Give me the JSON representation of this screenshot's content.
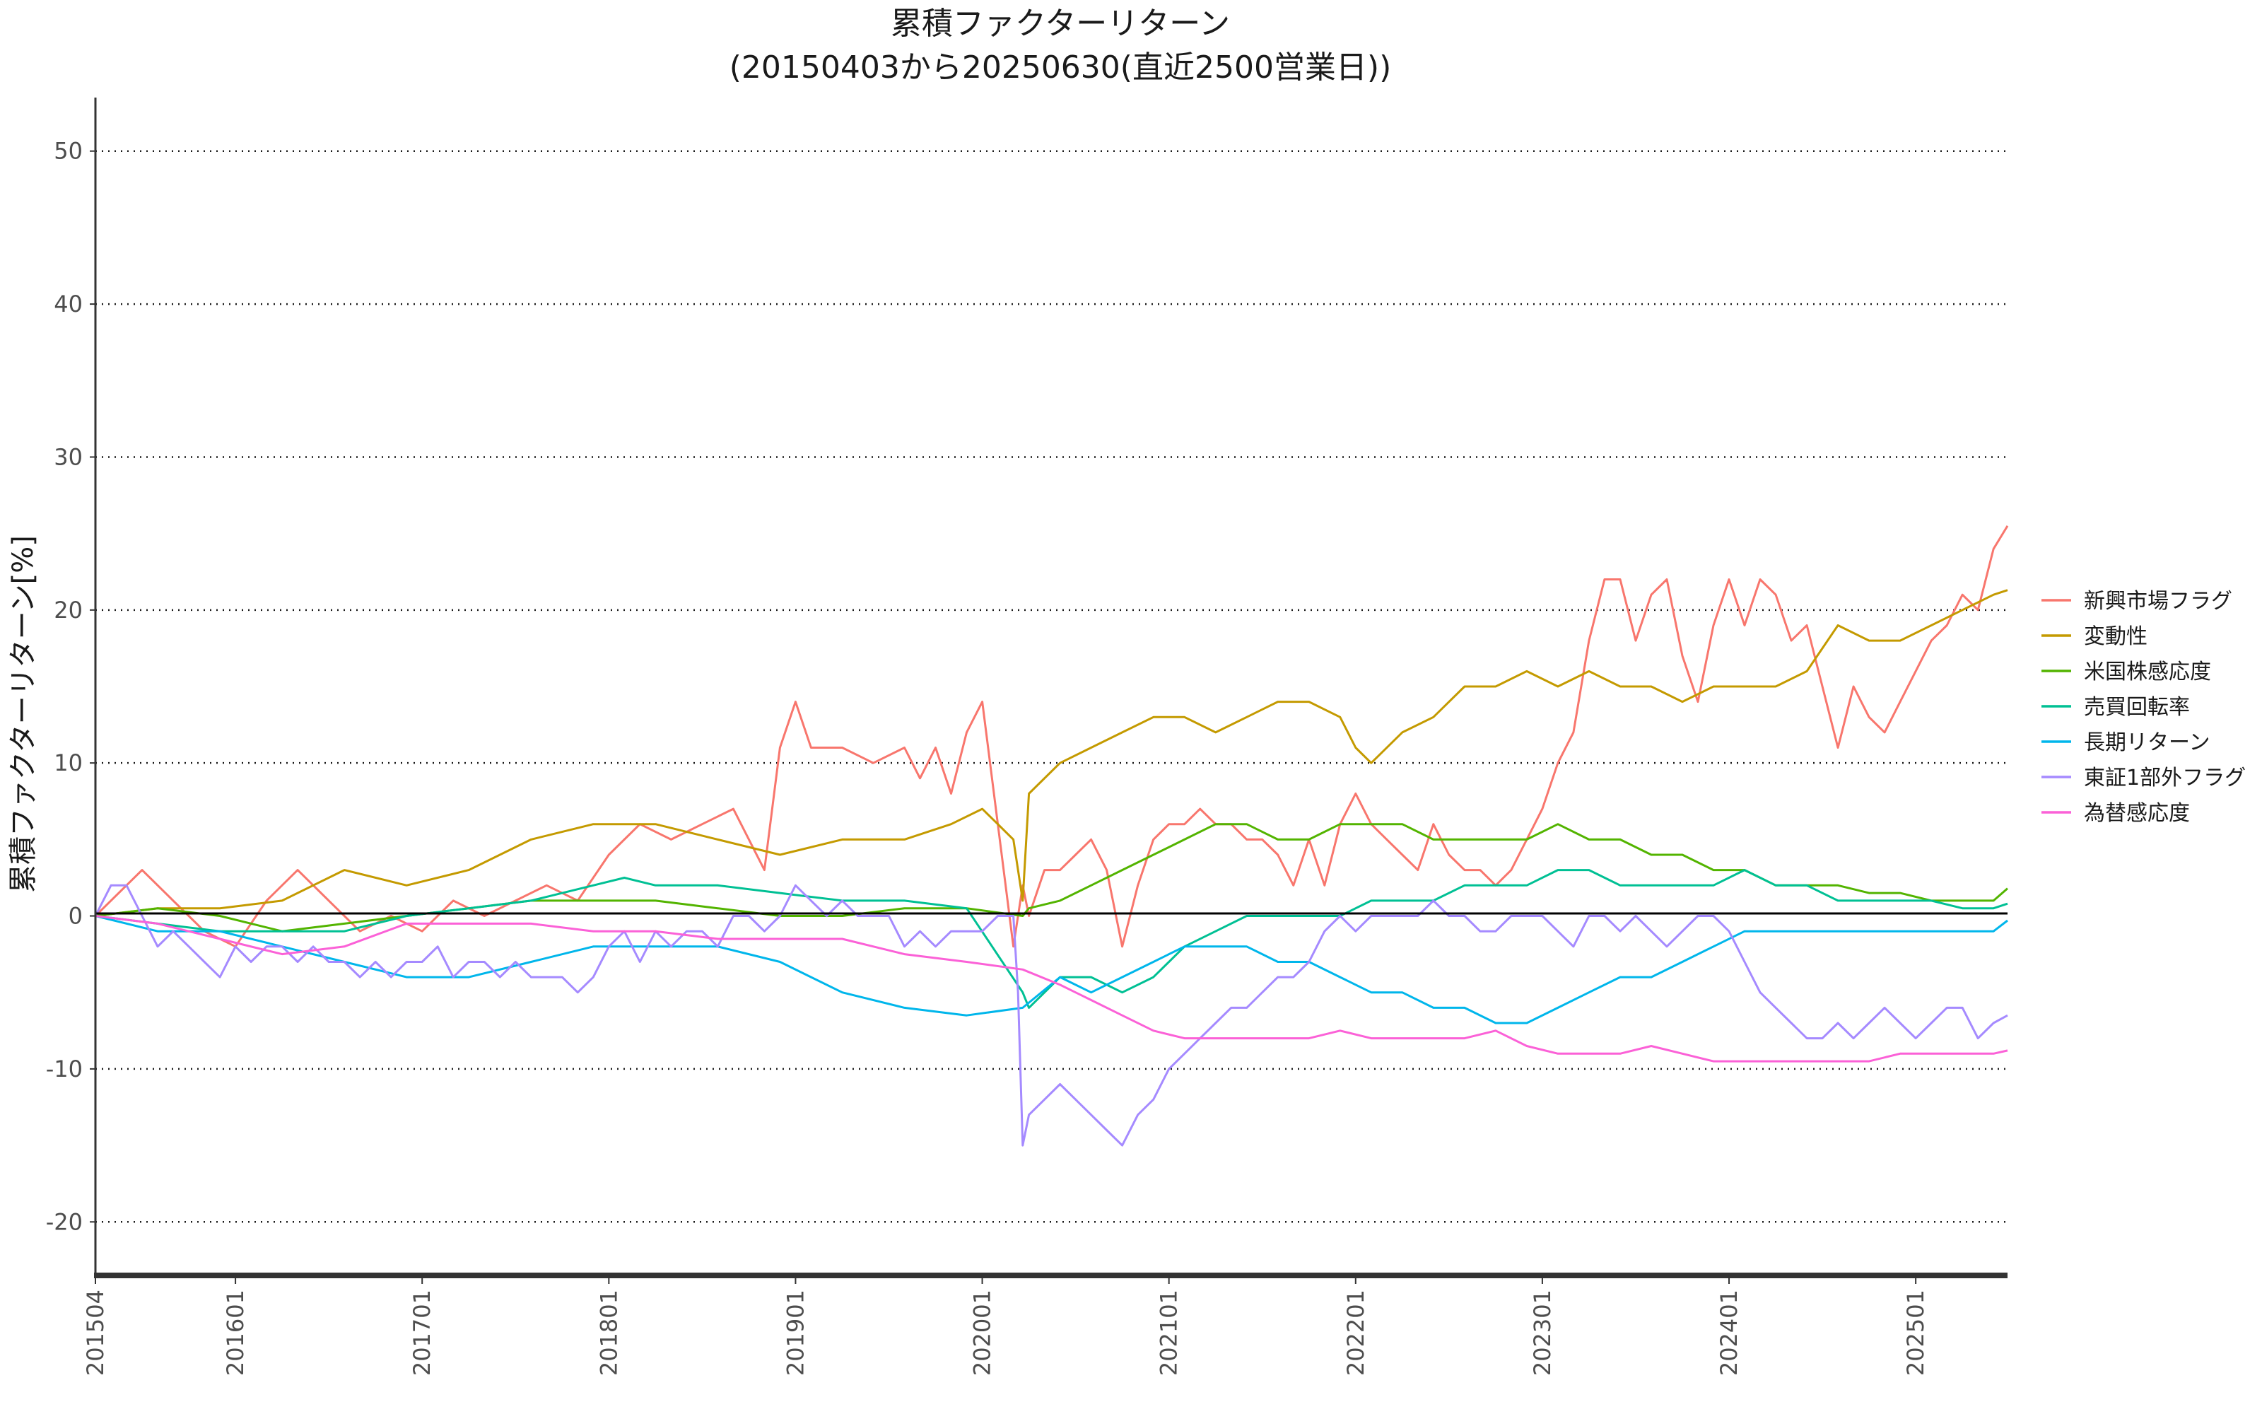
{
  "chart_data": {
    "type": "line",
    "title": "累積ファクターリターン",
    "subtitle": "(20150403から20250630(直近2500営業日))",
    "xlabel": "",
    "ylabel": "累積ファクターリターン[%]",
    "ylim": [
      -23.5,
      53.5
    ],
    "yticks": [
      -20,
      -10,
      0,
      10,
      20,
      30,
      40,
      50
    ],
    "ytick_labels": [
      "-20",
      "-10",
      "0",
      "10",
      "20",
      "30",
      "40",
      "50"
    ],
    "xlim": [
      0,
      122.9
    ],
    "xtick_positions": [
      0,
      9,
      21,
      33,
      45,
      57,
      69,
      81,
      93,
      105,
      117
    ],
    "xtick_labels": [
      "201504",
      "201601",
      "201701",
      "201801",
      "201901",
      "202001",
      "202101",
      "202201",
      "202301",
      "202401",
      "202501"
    ],
    "x_unit": "months since 2015-04",
    "grid": "horizontal dotted",
    "legend_position": "right",
    "series": [
      {
        "name": "新興市場フラグ",
        "color": "#F8766D",
        "x": [
          0,
          3,
          5,
          7,
          9,
          11,
          13,
          15,
          17,
          19,
          21,
          23,
          25,
          27,
          29,
          31,
          33,
          35,
          37,
          39,
          41,
          43,
          44,
          45,
          46,
          48,
          50,
          52,
          53,
          54,
          55,
          56,
          57,
          58,
          59,
          59.6,
          60,
          61,
          62,
          63,
          64,
          65,
          66,
          67,
          68,
          69,
          70,
          71,
          72,
          73,
          74,
          75,
          76,
          77,
          78,
          79,
          80,
          81,
          82,
          83,
          84,
          85,
          86,
          87,
          88,
          89,
          90,
          91,
          92,
          93,
          94,
          95,
          96,
          97,
          98,
          99,
          100,
          101,
          102,
          103,
          104,
          105,
          106,
          107,
          108,
          109,
          110,
          111,
          112,
          113,
          114,
          115,
          116,
          117,
          118,
          119,
          120,
          121,
          122,
          122.9
        ],
        "y": [
          0,
          3,
          1,
          -1,
          -2,
          1,
          3,
          1,
          -1,
          0,
          -1,
          1,
          0,
          1,
          2,
          1,
          4,
          6,
          5,
          6,
          7,
          3,
          11,
          14,
          11,
          11,
          10,
          11,
          9,
          11,
          8,
          12,
          14,
          6,
          -2,
          2,
          0,
          3,
          3,
          4,
          5,
          3,
          -2,
          2,
          5,
          6,
          6,
          7,
          6,
          6,
          5,
          5,
          4,
          2,
          5,
          2,
          6,
          8,
          6,
          5,
          4,
          3,
          6,
          4,
          3,
          3,
          2,
          3,
          5,
          7,
          10,
          12,
          18,
          22,
          22,
          18,
          21,
          22,
          17,
          14,
          19,
          22,
          19,
          22,
          21,
          18,
          19,
          15,
          11,
          15,
          13,
          12,
          14,
          16,
          18,
          19,
          21,
          20,
          24,
          25.5
        ]
      },
      {
        "name": "変動性",
        "color": "#C49A00",
        "x": [
          0,
          4,
          8,
          12,
          16,
          20,
          24,
          28,
          32,
          36,
          40,
          44,
          48,
          52,
          55,
          57,
          58,
          59,
          59.6,
          60,
          62,
          64,
          66,
          68,
          70,
          72,
          74,
          76,
          78,
          80,
          81,
          82,
          84,
          86,
          88,
          90,
          92,
          94,
          96,
          98,
          100,
          102,
          104,
          106,
          108,
          110,
          112,
          114,
          116,
          118,
          120,
          122,
          122.9
        ],
        "y": [
          0,
          0.5,
          0.5,
          1,
          3,
          2,
          3,
          5,
          6,
          6,
          5,
          4,
          5,
          5,
          6,
          7,
          6,
          5,
          1,
          8,
          10,
          11,
          12,
          13,
          13,
          12,
          13,
          14,
          14,
          13,
          11,
          10,
          12,
          13,
          15,
          15,
          16,
          15,
          16,
          15,
          15,
          14,
          15,
          15,
          15,
          16,
          19,
          18,
          18,
          19,
          20,
          21,
          21.3
        ]
      },
      {
        "name": "米国株感応度",
        "color": "#53B400",
        "x": [
          0,
          4,
          8,
          12,
          16,
          20,
          24,
          28,
          32,
          36,
          40,
          44,
          48,
          52,
          56,
          59.6,
          60,
          62,
          64,
          66,
          68,
          70,
          72,
          74,
          76,
          78,
          80,
          82,
          84,
          86,
          88,
          90,
          92,
          94,
          96,
          98,
          100,
          102,
          104,
          106,
          108,
          110,
          112,
          114,
          116,
          118,
          120,
          122,
          122.9
        ],
        "y": [
          0,
          0.5,
          0,
          -1,
          -0.5,
          0,
          0.5,
          1,
          1,
          1,
          0.5,
          0,
          0,
          0.5,
          0.5,
          0,
          0.5,
          1,
          2,
          3,
          4,
          5,
          6,
          6,
          5,
          5,
          6,
          6,
          6,
          5,
          5,
          5,
          5,
          6,
          5,
          5,
          4,
          4,
          3,
          3,
          2,
          2,
          2,
          1.5,
          1.5,
          1,
          1,
          1,
          1.8
        ]
      },
      {
        "name": "売買回転率",
        "color": "#00C094",
        "x": [
          0,
          4,
          8,
          12,
          16,
          20,
          24,
          28,
          32,
          34,
          36,
          40,
          44,
          48,
          52,
          56,
          59.6,
          60,
          62,
          64,
          66,
          68,
          70,
          72,
          74,
          76,
          78,
          80,
          82,
          84,
          86,
          88,
          90,
          92,
          94,
          96,
          98,
          100,
          102,
          104,
          106,
          108,
          110,
          112,
          114,
          116,
          118,
          120,
          122,
          122.9
        ],
        "y": [
          0,
          -0.5,
          -1,
          -1,
          -1,
          0,
          0.5,
          1,
          2,
          2.5,
          2,
          2,
          1.5,
          1,
          1,
          0.5,
          -5,
          -6,
          -4,
          -4,
          -5,
          -4,
          -2,
          -1,
          0,
          0,
          0,
          0,
          1,
          1,
          1,
          2,
          2,
          2,
          3,
          3,
          2,
          2,
          2,
          2,
          3,
          2,
          2,
          1,
          1,
          1,
          1,
          0.5,
          0.5,
          0.8
        ]
      },
      {
        "name": "長期リターン",
        "color": "#00B6EB",
        "x": [
          0,
          4,
          8,
          12,
          16,
          20,
          24,
          28,
          32,
          36,
          40,
          44,
          48,
          52,
          56,
          59.6,
          62,
          64,
          66,
          68,
          70,
          72,
          74,
          76,
          78,
          80,
          82,
          84,
          86,
          88,
          90,
          92,
          94,
          96,
          98,
          100,
          102,
          104,
          106,
          108,
          110,
          112,
          114,
          116,
          118,
          120,
          122,
          122.9
        ],
        "y": [
          0,
          -1,
          -1,
          -2,
          -3,
          -4,
          -4,
          -3,
          -2,
          -2,
          -2,
          -3,
          -5,
          -6,
          -6.5,
          -6,
          -4,
          -5,
          -4,
          -3,
          -2,
          -2,
          -2,
          -3,
          -3,
          -4,
          -5,
          -5,
          -6,
          -6,
          -7,
          -7,
          -6,
          -5,
          -4,
          -4,
          -3,
          -2,
          -1,
          -1,
          -1,
          -1,
          -1,
          -1,
          -1,
          -1,
          -1,
          -0.3
        ]
      },
      {
        "name": "東証1部外フラグ",
        "color": "#A58AFF",
        "x": [
          0,
          1,
          2,
          3,
          4,
          5,
          6,
          7,
          8,
          9,
          10,
          11,
          12,
          13,
          14,
          15,
          16,
          17,
          18,
          19,
          20,
          21,
          22,
          23,
          24,
          25,
          26,
          27,
          28,
          29,
          30,
          31,
          32,
          33,
          34,
          35,
          36,
          37,
          38,
          39,
          40,
          41,
          42,
          43,
          44,
          45,
          46,
          47,
          48,
          49,
          50,
          51,
          52,
          53,
          54,
          55,
          56,
          57,
          58,
          59,
          59.3,
          59.6,
          60,
          61,
          62,
          63,
          64,
          65,
          66,
          67,
          68,
          69,
          70,
          71,
          72,
          73,
          74,
          75,
          76,
          77,
          78,
          79,
          80,
          81,
          82,
          83,
          84,
          85,
          86,
          87,
          88,
          89,
          90,
          91,
          92,
          93,
          94,
          95,
          96,
          97,
          98,
          99,
          100,
          101,
          102,
          103,
          104,
          105,
          106,
          107,
          108,
          109,
          110,
          111,
          112,
          113,
          114,
          115,
          116,
          117,
          118,
          119,
          120,
          121,
          122,
          122.9
        ],
        "y": [
          0,
          2,
          2,
          0,
          -2,
          -1,
          -2,
          -3,
          -4,
          -2,
          -3,
          -2,
          -2,
          -3,
          -2,
          -3,
          -3,
          -4,
          -3,
          -4,
          -3,
          -3,
          -2,
          -4,
          -3,
          -3,
          -4,
          -3,
          -4,
          -4,
          -4,
          -5,
          -4,
          -2,
          -1,
          -3,
          -1,
          -2,
          -1,
          -1,
          -2,
          0,
          0,
          -1,
          0,
          2,
          1,
          0,
          1,
          0,
          0,
          0,
          -2,
          -1,
          -2,
          -1,
          -1,
          -1,
          0,
          0,
          -5,
          -15,
          -13,
          -12,
          -11,
          -12,
          -13,
          -14,
          -15,
          -13,
          -12,
          -10,
          -9,
          -8,
          -7,
          -6,
          -6,
          -5,
          -4,
          -4,
          -3,
          -1,
          0,
          -1,
          0,
          0,
          0,
          0,
          1,
          0,
          0,
          -1,
          -1,
          0,
          0,
          0,
          -1,
          -2,
          0,
          0,
          -1,
          0,
          -1,
          -2,
          -1,
          0,
          0,
          -1,
          -3,
          -5,
          -6,
          -7,
          -8,
          -8,
          -7,
          -8,
          -7,
          -6,
          -7,
          -8,
          -7,
          -6,
          -6,
          -8,
          -7,
          -6.5
        ]
      },
      {
        "name": "為替感応度",
        "color": "#FB61D7",
        "x": [
          0,
          4,
          8,
          12,
          16,
          20,
          24,
          28,
          32,
          36,
          40,
          44,
          48,
          52,
          56,
          59.6,
          62,
          64,
          66,
          68,
          70,
          72,
          74,
          76,
          78,
          80,
          82,
          84,
          86,
          88,
          90,
          92,
          94,
          96,
          98,
          100,
          102,
          104,
          106,
          108,
          110,
          112,
          114,
          116,
          118,
          120,
          122,
          122.9
        ],
        "y": [
          0,
          -0.5,
          -1.5,
          -2.5,
          -2,
          -0.5,
          -0.5,
          -0.5,
          -1,
          -1,
          -1.5,
          -1.5,
          -1.5,
          -2.5,
          -3,
          -3.5,
          -4.5,
          -5.5,
          -6.5,
          -7.5,
          -8,
          -8,
          -8,
          -8,
          -8,
          -7.5,
          -8,
          -8,
          -8,
          -8,
          -7.5,
          -8.5,
          -9,
          -9,
          -9,
          -8.5,
          -9,
          -9.5,
          -9.5,
          -9.5,
          -9.5,
          -9.5,
          -9.5,
          -9,
          -9,
          -9,
          -9,
          -8.8
        ]
      }
    ]
  }
}
